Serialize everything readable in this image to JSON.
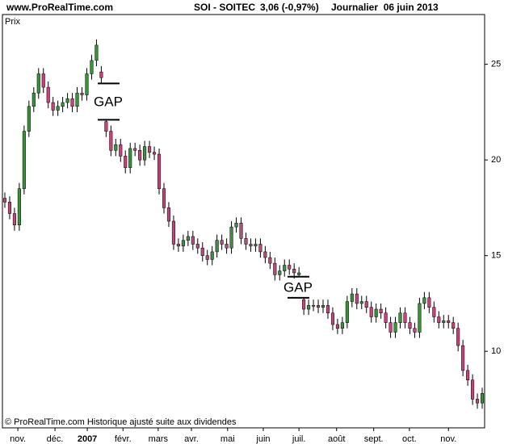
{
  "header": {
    "site": "www.ProRealTime.com",
    "symbol": "SOI - SOITEC",
    "quote": "3,06 (-0,97%)",
    "period": "Journalier  06 juin 2013"
  },
  "footer": "© ProRealTime.com Historique ajusté suite aux dividendes",
  "chart_data": {
    "type": "candlestick",
    "y_label": "Prix",
    "up_color": "#3d8f3d",
    "down_color": "#c2457a",
    "wick_color": "#000000",
    "xlim": [
      0,
      100
    ],
    "ylim": [
      6,
      27.6
    ],
    "yticks": [
      10,
      15,
      20,
      25
    ],
    "y_axis_side": "right",
    "xticks": [
      {
        "value": 3.2,
        "label": "nov."
      },
      {
        "value": 10.9,
        "label": "déc."
      },
      {
        "value": 17.6,
        "label": "2007"
      },
      {
        "value": 25,
        "label": "févr."
      },
      {
        "value": 32.3,
        "label": "mars"
      },
      {
        "value": 39.2,
        "label": "avr."
      },
      {
        "value": 46.7,
        "label": "mai"
      },
      {
        "value": 54.1,
        "label": "juin"
      },
      {
        "value": 61.5,
        "label": "juil."
      },
      {
        "value": 69.3,
        "label": "août"
      },
      {
        "value": 77,
        "label": "sept."
      },
      {
        "value": 84.4,
        "label": "oct."
      },
      {
        "value": 92.5,
        "label": "nov."
      }
    ],
    "annotations": [
      {
        "text": "GAP",
        "upper": 24.0,
        "lower": 22.1
      },
      {
        "text": "GAP",
        "upper": 13.9,
        "lower": 12.8
      }
    ],
    "open": [
      18.0,
      17.8,
      17.2,
      16.6,
      18.5,
      21.5,
      22.8,
      23.5,
      24.5,
      23.8,
      23.0,
      22.6,
      22.8,
      23.0,
      23.2,
      22.8,
      23.5,
      23.4,
      24.5,
      25.2,
      24.6,
      22.0,
      21.5,
      20.5,
      20.8,
      20.2,
      19.6,
      20.6,
      20.5,
      20.0,
      20.7,
      20.4,
      20.3,
      18.5,
      17.5,
      16.8,
      15.6,
      15.5,
      15.8,
      16.0,
      15.6,
      15.4,
      15.0,
      14.8,
      15.2,
      15.8,
      15.6,
      15.4,
      16.5,
      16.7,
      15.9,
      15.6,
      15.5,
      15.6,
      15.2,
      14.9,
      14.6,
      14.0,
      14.2,
      14.5,
      14.3,
      14.0,
      12.7,
      12.2,
      12.4,
      12.4,
      12.3,
      12.4,
      12.0,
      11.4,
      11.2,
      11.5,
      12.6,
      13.0,
      12.5,
      12.6,
      12.3,
      11.8,
      12.2,
      12.0,
      11.5,
      11.0,
      11.5,
      12.0,
      11.5,
      11.2,
      11.0,
      12.5,
      12.8,
      12.3,
      11.8,
      11.5,
      11.6,
      11.5,
      11.2,
      10.3,
      9.0,
      8.5,
      7.5,
      7.3
    ],
    "high": [
      18.3,
      18.1,
      17.5,
      18.8,
      21.8,
      23.1,
      23.8,
      24.8,
      24.8,
      24.1,
      23.3,
      23.1,
      23.3,
      23.5,
      23.5,
      23.8,
      23.8,
      24.8,
      25.5,
      26.3,
      24.9,
      22.1,
      21.8,
      21.1,
      21.1,
      20.5,
      20.9,
      20.9,
      20.8,
      21.0,
      21.0,
      20.7,
      20.6,
      18.8,
      17.8,
      17.1,
      15.9,
      16.1,
      16.3,
      16.3,
      15.9,
      15.7,
      15.3,
      15.5,
      16.1,
      16.1,
      15.9,
      16.8,
      17.0,
      17.0,
      16.2,
      15.9,
      15.9,
      15.9,
      15.5,
      15.2,
      14.9,
      14.5,
      14.8,
      14.8,
      14.6,
      14.4,
      12.8,
      12.7,
      12.7,
      12.7,
      12.7,
      12.7,
      12.3,
      11.7,
      11.8,
      12.9,
      13.3,
      13.3,
      12.9,
      12.9,
      12.6,
      12.5,
      12.5,
      12.3,
      11.8,
      11.8,
      12.3,
      12.3,
      11.8,
      11.5,
      12.8,
      13.1,
      13.1,
      12.6,
      12.1,
      11.9,
      11.9,
      11.8,
      11.5,
      10.6,
      9.3,
      8.8,
      7.8,
      8.1
    ],
    "low": [
      17.5,
      16.9,
      16.3,
      16.3,
      18.2,
      21.2,
      22.5,
      23.2,
      23.5,
      22.7,
      22.3,
      22.3,
      22.5,
      22.7,
      22.5,
      22.5,
      23.1,
      23.1,
      24.2,
      24.9,
      24.0,
      21.2,
      20.2,
      20.2,
      19.9,
      19.3,
      19.3,
      20.2,
      19.7,
      19.7,
      20.1,
      20.0,
      18.2,
      17.2,
      16.5,
      15.3,
      15.2,
      15.2,
      15.5,
      15.3,
      15.1,
      14.7,
      14.5,
      14.5,
      14.9,
      15.3,
      15.1,
      15.1,
      16.2,
      15.6,
      15.3,
      15.2,
      15.2,
      14.9,
      14.6,
      14.3,
      13.7,
      13.7,
      13.9,
      14.0,
      13.8,
      13.9,
      11.9,
      11.9,
      12.1,
      12.0,
      12.0,
      11.7,
      11.1,
      10.9,
      10.9,
      11.2,
      12.3,
      12.2,
      12.2,
      12.0,
      11.5,
      11.5,
      11.7,
      11.2,
      10.7,
      10.7,
      11.2,
      11.2,
      10.9,
      10.7,
      10.7,
      12.2,
      12.0,
      11.5,
      11.2,
      11.2,
      11.2,
      10.9,
      10.0,
      8.7,
      8.2,
      7.2,
      7.0,
      7.0
    ],
    "close": [
      17.8,
      17.2,
      16.6,
      18.5,
      21.5,
      22.8,
      23.5,
      24.5,
      23.8,
      23.0,
      22.6,
      22.8,
      23.0,
      23.2,
      22.8,
      23.5,
      23.4,
      24.5,
      25.2,
      26.0,
      24.3,
      21.5,
      20.5,
      20.8,
      20.2,
      19.6,
      20.6,
      20.5,
      20.0,
      20.7,
      20.4,
      20.3,
      18.5,
      17.5,
      16.8,
      15.6,
      15.5,
      15.8,
      16.0,
      15.6,
      15.4,
      15.0,
      14.8,
      15.2,
      15.8,
      15.6,
      15.4,
      16.5,
      16.7,
      15.9,
      15.6,
      15.5,
      15.6,
      15.2,
      14.9,
      14.6,
      14.0,
      14.2,
      14.5,
      14.3,
      14.1,
      14.1,
      12.2,
      12.4,
      12.4,
      12.3,
      12.4,
      12.0,
      11.4,
      11.2,
      11.5,
      12.6,
      13.0,
      12.5,
      12.6,
      12.3,
      11.8,
      12.2,
      12.0,
      11.5,
      11.0,
      11.5,
      12.0,
      11.5,
      11.2,
      11.0,
      12.5,
      12.8,
      12.3,
      11.8,
      11.5,
      11.6,
      11.5,
      11.2,
      10.3,
      9.0,
      8.5,
      7.5,
      7.3,
      7.8
    ]
  }
}
